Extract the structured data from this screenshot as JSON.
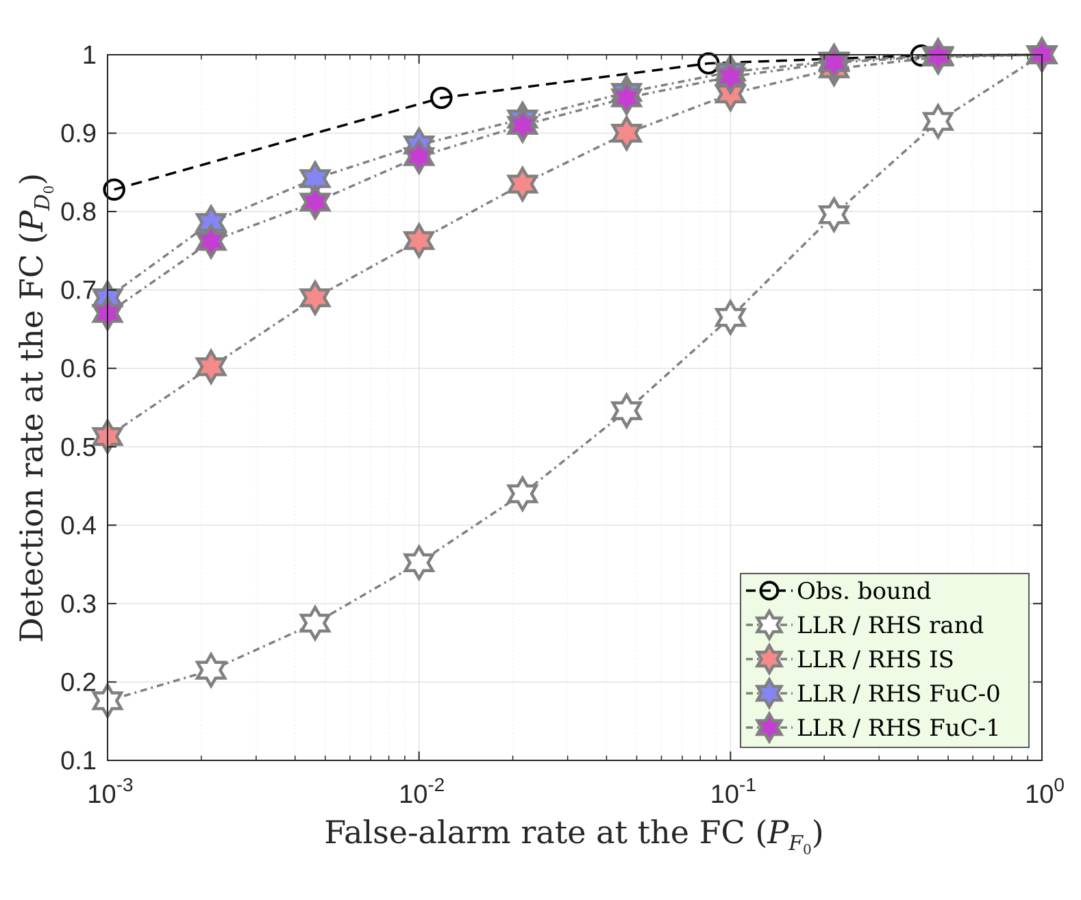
{
  "chart_data": {
    "type": "line",
    "x_scale": "log",
    "xlim": [
      0.001,
      1
    ],
    "ylim": [
      0.1,
      1
    ],
    "grid": true,
    "minor_grid": true,
    "legend_position": "bottom-right",
    "xlabel": "False-alarm rate at the FC (",
    "xlabel_symbol": "P",
    "xlabel_sub": "F",
    "xlabel_subsub": "0",
    "xlabel_close": ")",
    "ylabel": "Detection rate at the FC (",
    "ylabel_symbol": "P",
    "ylabel_sub": "D",
    "ylabel_subsub": "0",
    "ylabel_close": ")",
    "x_ticks": [
      {
        "value": 0.001,
        "base": "10",
        "exp": "-3"
      },
      {
        "value": 0.01,
        "base": "10",
        "exp": "-2"
      },
      {
        "value": 0.1,
        "base": "10",
        "exp": "-1"
      },
      {
        "value": 1,
        "base": "10",
        "exp": "0"
      }
    ],
    "y_ticks": [
      {
        "value": 0.1,
        "label": "0.1"
      },
      {
        "value": 0.2,
        "label": "0.2"
      },
      {
        "value": 0.3,
        "label": "0.3"
      },
      {
        "value": 0.4,
        "label": "0.4"
      },
      {
        "value": 0.5,
        "label": "0.5"
      },
      {
        "value": 0.6,
        "label": "0.6"
      },
      {
        "value": 0.7,
        "label": "0.7"
      },
      {
        "value": 0.8,
        "label": "0.8"
      },
      {
        "value": 0.9,
        "label": "0.9"
      },
      {
        "value": 1.0,
        "label": "1"
      }
    ],
    "series": [
      {
        "name": "Obs. bound",
        "marker": "circle",
        "line_color": "#000000",
        "line_style": "dashed",
        "marker_fill": "none",
        "points": [
          {
            "x": 0.00105,
            "y": 0.828
          },
          {
            "x": 0.0118,
            "y": 0.945
          },
          {
            "x": 0.085,
            "y": 0.989
          },
          {
            "x": 0.41,
            "y": 0.999
          },
          {
            "x": 1.0,
            "y": 1.0
          }
        ]
      },
      {
        "name": "LLR / RHS rand",
        "marker": "hexagram",
        "line_color": "#808080",
        "line_style": "dashdot",
        "marker_fill": "#ffffff",
        "points": [
          {
            "x": 0.001,
            "y": 0.176
          },
          {
            "x": 0.00215,
            "y": 0.215
          },
          {
            "x": 0.00464,
            "y": 0.275
          },
          {
            "x": 0.01,
            "y": 0.352
          },
          {
            "x": 0.0215,
            "y": 0.44
          },
          {
            "x": 0.0464,
            "y": 0.546
          },
          {
            "x": 0.1,
            "y": 0.665
          },
          {
            "x": 0.215,
            "y": 0.796
          },
          {
            "x": 0.464,
            "y": 0.915
          },
          {
            "x": 1.0,
            "y": 1.0
          }
        ]
      },
      {
        "name": "LLR / RHS IS",
        "marker": "hexagram",
        "line_color": "#808080",
        "line_style": "dashdot",
        "marker_fill": "#f58a8a",
        "points": [
          {
            "x": 0.001,
            "y": 0.513
          },
          {
            "x": 0.00215,
            "y": 0.602
          },
          {
            "x": 0.00464,
            "y": 0.69
          },
          {
            "x": 0.01,
            "y": 0.763
          },
          {
            "x": 0.0215,
            "y": 0.835
          },
          {
            "x": 0.0464,
            "y": 0.9
          },
          {
            "x": 0.1,
            "y": 0.95
          },
          {
            "x": 0.215,
            "y": 0.982
          },
          {
            "x": 0.464,
            "y": 0.997
          },
          {
            "x": 1.0,
            "y": 1.0
          }
        ]
      },
      {
        "name": "LLR / RHS FuC-0",
        "marker": "hexagram",
        "line_color": "#808080",
        "line_style": "dashdot",
        "marker_fill": "#8585f5",
        "points": [
          {
            "x": 0.001,
            "y": 0.69
          },
          {
            "x": 0.00215,
            "y": 0.786
          },
          {
            "x": 0.00464,
            "y": 0.842
          },
          {
            "x": 0.01,
            "y": 0.885
          },
          {
            "x": 0.0215,
            "y": 0.918
          },
          {
            "x": 0.0464,
            "y": 0.952
          },
          {
            "x": 0.1,
            "y": 0.978
          },
          {
            "x": 0.215,
            "y": 0.992
          },
          {
            "x": 0.464,
            "y": 0.999
          },
          {
            "x": 1.0,
            "y": 1.0
          }
        ]
      },
      {
        "name": "LLR / RHS FuC-1",
        "marker": "hexagram",
        "line_color": "#808080",
        "line_style": "dashdot",
        "marker_fill": "#c43fd1",
        "points": [
          {
            "x": 0.001,
            "y": 0.67
          },
          {
            "x": 0.00215,
            "y": 0.762
          },
          {
            "x": 0.00464,
            "y": 0.812
          },
          {
            "x": 0.01,
            "y": 0.87
          },
          {
            "x": 0.0215,
            "y": 0.91
          },
          {
            "x": 0.0464,
            "y": 0.945
          },
          {
            "x": 0.1,
            "y": 0.972
          },
          {
            "x": 0.215,
            "y": 0.99
          },
          {
            "x": 0.464,
            "y": 0.998
          },
          {
            "x": 1.0,
            "y": 1.0
          }
        ]
      }
    ],
    "colors": {
      "axis": "#262626",
      "grid": "#e2e2e2",
      "legend_background": "#f0fbe6",
      "marker_edge": "#808080"
    }
  }
}
